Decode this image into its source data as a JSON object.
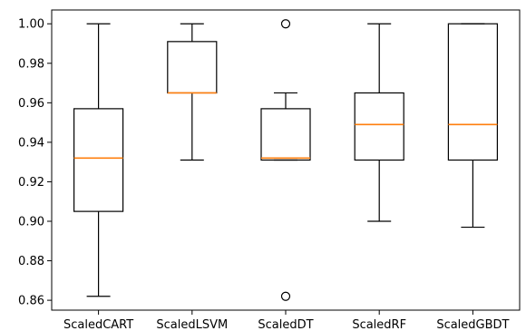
{
  "chart_data": {
    "type": "box",
    "title": "",
    "xlabel": "",
    "ylabel": "",
    "ylim": [
      0.855,
      1.007
    ],
    "yticks": [
      "0.86",
      "0.88",
      "0.90",
      "0.92",
      "0.94",
      "0.96",
      "0.98",
      "1.00"
    ],
    "grid": false,
    "colors": {
      "median": "#ff7f0e",
      "box": "#000000"
    },
    "categories": [
      "ScaledCART",
      "ScaledLSVM",
      "ScaledDT",
      "ScaledRF",
      "ScaledGBDT"
    ],
    "boxes": [
      {
        "min": 0.862,
        "q1": 0.905,
        "median": 0.932,
        "q3": 0.957,
        "max": 1.0,
        "fliers": []
      },
      {
        "min": 0.931,
        "q1": 0.965,
        "median": 0.965,
        "q3": 0.991,
        "max": 1.0,
        "fliers": []
      },
      {
        "min": 0.931,
        "q1": 0.931,
        "median": 0.932,
        "q3": 0.957,
        "max": 0.965,
        "fliers": [
          1.0,
          0.862
        ]
      },
      {
        "min": 0.9,
        "q1": 0.931,
        "median": 0.949,
        "q3": 0.965,
        "max": 1.0,
        "fliers": []
      },
      {
        "min": 0.897,
        "q1": 0.931,
        "median": 0.949,
        "q3": 1.0,
        "max": 1.0,
        "fliers": []
      }
    ]
  }
}
